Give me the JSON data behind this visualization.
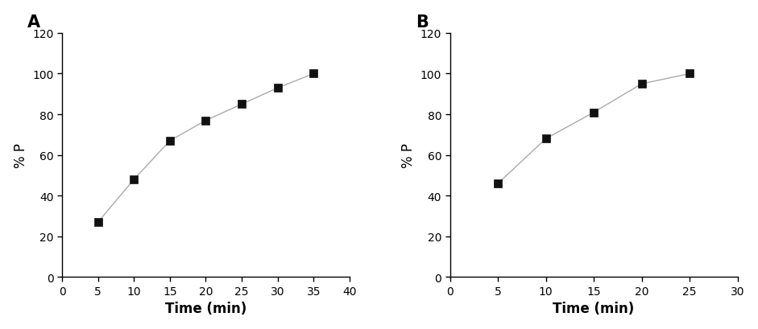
{
  "A": {
    "label": "A",
    "x": [
      5,
      10,
      15,
      20,
      25,
      30,
      35
    ],
    "y": [
      27,
      48,
      67,
      77,
      85,
      93,
      100
    ],
    "xlabel": "Time (min)",
    "ylabel": "% P",
    "xlim": [
      0,
      40
    ],
    "ylim": [
      0,
      120
    ],
    "xticks": [
      0,
      5,
      10,
      15,
      20,
      25,
      30,
      35,
      40
    ],
    "yticks": [
      0,
      20,
      40,
      60,
      80,
      100,
      120
    ]
  },
  "B": {
    "label": "B",
    "x": [
      5,
      10,
      15,
      20,
      25
    ],
    "y": [
      46,
      68,
      81,
      95,
      100
    ],
    "xlabel": "Time (min)",
    "ylabel": "% P",
    "xlim": [
      0,
      30
    ],
    "ylim": [
      0,
      120
    ],
    "xticks": [
      0,
      5,
      10,
      15,
      20,
      25,
      30
    ],
    "yticks": [
      0,
      20,
      40,
      60,
      80,
      100,
      120
    ]
  },
  "line_color": "#aaaaaa",
  "marker": "s",
  "marker_size": 7,
  "marker_color": "#111111",
  "line_width": 1.0,
  "line_style": "-",
  "label_fontsize": 12,
  "tick_fontsize": 10,
  "panel_label_fontsize": 15,
  "background_color": "#ffffff"
}
